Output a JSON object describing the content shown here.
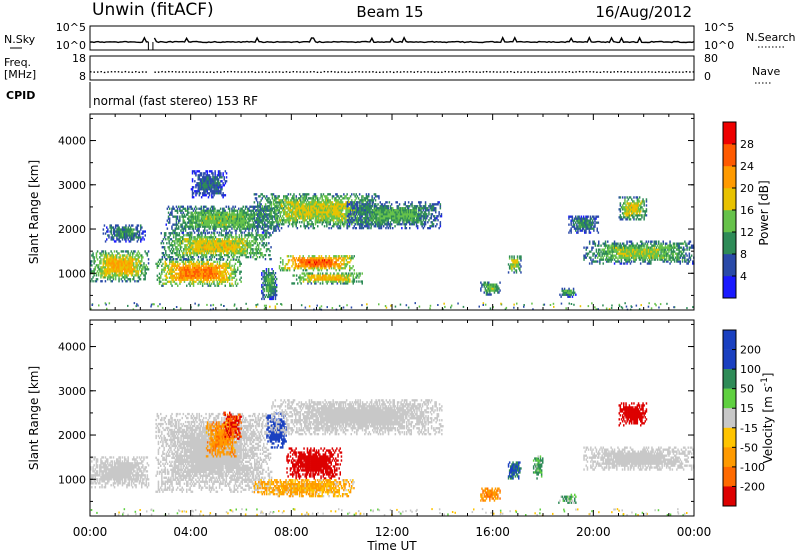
{
  "header": {
    "site": "Unwin (fitACF)",
    "beam": "Beam 15",
    "date": "16/Aug/2012"
  },
  "noise_panel": {
    "left_label": "N.Sky",
    "right_label": "N.Search",
    "left_ticks": [
      "10^5",
      "10^0"
    ],
    "right_ticks": [
      "10^5",
      "10^0"
    ]
  },
  "freq_panel": {
    "left_label_line1": "Freq.",
    "left_label_line2": "[MHz]",
    "right_label": "Nave",
    "left_ticks": [
      "18",
      "8"
    ],
    "right_ticks": [
      "80",
      "0"
    ]
  },
  "cpid": {
    "label": "CPID",
    "mode_text": "normal (fast stereo) 153 RF"
  },
  "colors": {
    "power": [
      "#1a1aff",
      "#2a4aa8",
      "#2e8b57",
      "#66c24a",
      "#e8c200",
      "#ff9a00",
      "#ff5a00",
      "#ee0000"
    ],
    "velocity": [
      "#dd0000",
      "#ff6a00",
      "#ff9a00",
      "#ffc400",
      "#c8c8c8",
      "#5fd040",
      "#2e8b57",
      "#1a40c0"
    ]
  },
  "chart_data": [
    {
      "type": "heatmap",
      "panel": "power",
      "ylabel": "Slant Range [km]",
      "xlabel": "Time UT",
      "x_ticks": [
        "00:00",
        "04:00",
        "08:00",
        "12:00",
        "16:00",
        "20:00",
        "00:00"
      ],
      "y_ticks": [
        1000,
        2000,
        3000,
        4000
      ],
      "ylim": [
        170,
        4600
      ],
      "xlim_hours": [
        0,
        24
      ],
      "colorbar_label": "Power [dB]",
      "colorbar_ticks": [
        "4",
        "8",
        "12",
        "16",
        "20",
        "24",
        "28"
      ],
      "colorbar_range": [
        0,
        32
      ],
      "regions": [
        {
          "t0": 0.0,
          "t1": 2.3,
          "r0": 800,
          "r1": 1500,
          "value": 20
        },
        {
          "t0": 0.5,
          "t1": 2.2,
          "r0": 1700,
          "r1": 2100,
          "value": 10
        },
        {
          "t0": 2.6,
          "t1": 6.0,
          "r0": 700,
          "r1": 1300,
          "value": 24
        },
        {
          "t0": 2.8,
          "t1": 7.2,
          "r0": 1300,
          "r1": 1900,
          "value": 18
        },
        {
          "t0": 3.0,
          "t1": 7.5,
          "r0": 1900,
          "r1": 2500,
          "value": 14
        },
        {
          "t0": 4.0,
          "t1": 5.4,
          "r0": 2700,
          "r1": 3300,
          "value": 8
        },
        {
          "t0": 6.5,
          "t1": 11.5,
          "r0": 2000,
          "r1": 2800,
          "value": 17
        },
        {
          "t0": 7.5,
          "t1": 10.5,
          "r0": 1050,
          "r1": 1400,
          "value": 26
        },
        {
          "t0": 8.0,
          "t1": 10.8,
          "r0": 750,
          "r1": 1000,
          "value": 20
        },
        {
          "t0": 6.8,
          "t1": 7.4,
          "r0": 400,
          "r1": 1100,
          "value": 12
        },
        {
          "t0": 10.2,
          "t1": 14.0,
          "r0": 2000,
          "r1": 2600,
          "value": 12
        },
        {
          "t0": 15.5,
          "t1": 16.3,
          "r0": 500,
          "r1": 800,
          "value": 14
        },
        {
          "t0": 16.6,
          "t1": 17.1,
          "r0": 1000,
          "r1": 1400,
          "value": 17
        },
        {
          "t0": 18.6,
          "t1": 19.3,
          "r0": 450,
          "r1": 650,
          "value": 12
        },
        {
          "t0": 19.6,
          "t1": 24.0,
          "r0": 1200,
          "r1": 1700,
          "value": 15
        },
        {
          "t0": 19.0,
          "t1": 20.2,
          "r0": 1900,
          "r1": 2300,
          "value": 10
        },
        {
          "t0": 21.0,
          "t1": 22.1,
          "r0": 2200,
          "r1": 2700,
          "value": 18
        }
      ]
    },
    {
      "type": "heatmap",
      "panel": "velocity",
      "ylabel": "Slant Range [km]",
      "xlabel": "Time UT",
      "x_ticks": [
        "00:00",
        "04:00",
        "08:00",
        "12:00",
        "16:00",
        "20:00",
        "00:00"
      ],
      "y_ticks": [
        1000,
        2000,
        3000,
        4000
      ],
      "ylim": [
        170,
        4600
      ],
      "xlim_hours": [
        0,
        24
      ],
      "colorbar_label": "Velocity [m s^-1]",
      "colorbar_ticks": [
        "-200",
        "-100",
        "-50",
        "-15",
        "15",
        "50",
        "100",
        "200"
      ],
      "regions": [
        {
          "t0": 0.0,
          "t1": 2.3,
          "r0": 800,
          "r1": 1500,
          "value": 0
        },
        {
          "t0": 2.6,
          "t1": 7.2,
          "r0": 700,
          "r1": 2500,
          "value": 0
        },
        {
          "t0": 4.6,
          "t1": 5.8,
          "r0": 1500,
          "r1": 2300,
          "value": -60
        },
        {
          "t0": 5.3,
          "t1": 6.0,
          "r0": 1900,
          "r1": 2500,
          "value": -150
        },
        {
          "t0": 7.0,
          "t1": 7.8,
          "r0": 1700,
          "r1": 2500,
          "value": 150
        },
        {
          "t0": 7.8,
          "t1": 10.0,
          "r0": 1000,
          "r1": 1700,
          "value": -200
        },
        {
          "t0": 6.5,
          "t1": 10.5,
          "r0": 600,
          "r1": 1000,
          "value": -40
        },
        {
          "t0": 7.2,
          "t1": 14.0,
          "r0": 2000,
          "r1": 2800,
          "value": 0
        },
        {
          "t0": 15.5,
          "t1": 16.3,
          "r0": 500,
          "r1": 800,
          "value": -60
        },
        {
          "t0": 16.6,
          "t1": 17.1,
          "r0": 1000,
          "r1": 1400,
          "value": 80
        },
        {
          "t0": 17.6,
          "t1": 18.0,
          "r0": 1000,
          "r1": 1500,
          "value": 40
        },
        {
          "t0": 18.6,
          "t1": 19.3,
          "r0": 450,
          "r1": 650,
          "value": 30
        },
        {
          "t0": 19.6,
          "t1": 24.0,
          "r0": 1200,
          "r1": 1700,
          "value": 0
        },
        {
          "t0": 21.0,
          "t1": 22.1,
          "r0": 2200,
          "r1": 2700,
          "value": -200
        }
      ]
    }
  ]
}
